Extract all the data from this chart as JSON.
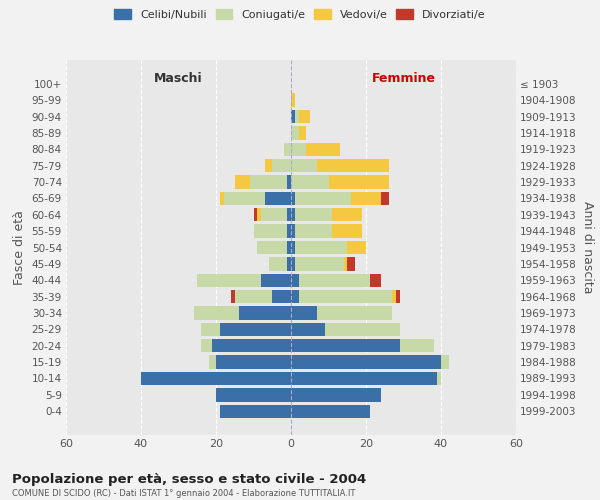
{
  "age_groups": [
    "0-4",
    "5-9",
    "10-14",
    "15-19",
    "20-24",
    "25-29",
    "30-34",
    "35-39",
    "40-44",
    "45-49",
    "50-54",
    "55-59",
    "60-64",
    "65-69",
    "70-74",
    "75-79",
    "80-84",
    "85-89",
    "90-94",
    "95-99",
    "100+"
  ],
  "birth_years": [
    "1999-2003",
    "1994-1998",
    "1989-1993",
    "1984-1988",
    "1979-1983",
    "1974-1978",
    "1969-1973",
    "1964-1968",
    "1959-1963",
    "1954-1958",
    "1949-1953",
    "1944-1948",
    "1939-1943",
    "1934-1938",
    "1929-1933",
    "1924-1928",
    "1919-1923",
    "1914-1918",
    "1909-1913",
    "1904-1908",
    "≤ 1903"
  ],
  "maschi": {
    "celibi": [
      19,
      20,
      40,
      20,
      21,
      19,
      14,
      5,
      8,
      1,
      1,
      1,
      1,
      7,
      1,
      0,
      0,
      0,
      0,
      0,
      0
    ],
    "coniugati": [
      0,
      0,
      0,
      2,
      3,
      5,
      12,
      10,
      17,
      5,
      8,
      9,
      7,
      11,
      10,
      5,
      2,
      0,
      0,
      0,
      0
    ],
    "vedovi": [
      0,
      0,
      0,
      0,
      0,
      0,
      0,
      0,
      0,
      0,
      0,
      0,
      1,
      1,
      4,
      2,
      0,
      0,
      0,
      0,
      0
    ],
    "divorziati": [
      0,
      0,
      0,
      0,
      0,
      0,
      0,
      1,
      0,
      0,
      0,
      0,
      1,
      0,
      0,
      0,
      0,
      0,
      0,
      0,
      0
    ]
  },
  "femmine": {
    "nubili": [
      21,
      24,
      39,
      40,
      29,
      9,
      7,
      2,
      2,
      1,
      1,
      1,
      1,
      1,
      0,
      0,
      0,
      0,
      1,
      0,
      0
    ],
    "coniugate": [
      0,
      0,
      1,
      2,
      9,
      20,
      20,
      25,
      19,
      13,
      14,
      10,
      10,
      15,
      10,
      7,
      4,
      2,
      1,
      0,
      0
    ],
    "vedove": [
      0,
      0,
      0,
      0,
      0,
      0,
      0,
      1,
      0,
      1,
      5,
      8,
      8,
      8,
      16,
      19,
      9,
      2,
      3,
      1,
      0
    ],
    "divorziate": [
      0,
      0,
      0,
      0,
      0,
      0,
      0,
      1,
      3,
      2,
      0,
      0,
      0,
      2,
      0,
      0,
      0,
      0,
      0,
      0,
      0
    ]
  },
  "colors": {
    "celibi": "#3a6fa8",
    "coniugati": "#c8d9a8",
    "vedovi": "#f5c842",
    "divorziati": "#c0392b"
  },
  "xlim": 60,
  "title": "Popolazione per età, sesso e stato civile - 2004",
  "subtitle": "COMUNE DI SCIDO (RC) - Dati ISTAT 1° gennaio 2004 - Elaborazione TUTTITALIA.IT",
  "ylabel_left": "Fasce di età",
  "ylabel_right": "Anni di nascita",
  "xlabel_maschi": "Maschi",
  "xlabel_femmine": "Femmine",
  "legend_labels": [
    "Celibi/Nubili",
    "Coniugati/e",
    "Vedovi/e",
    "Divorziati/e"
  ],
  "bg_color": "#f2f2f2",
  "plot_bg": "#e8e8e8"
}
